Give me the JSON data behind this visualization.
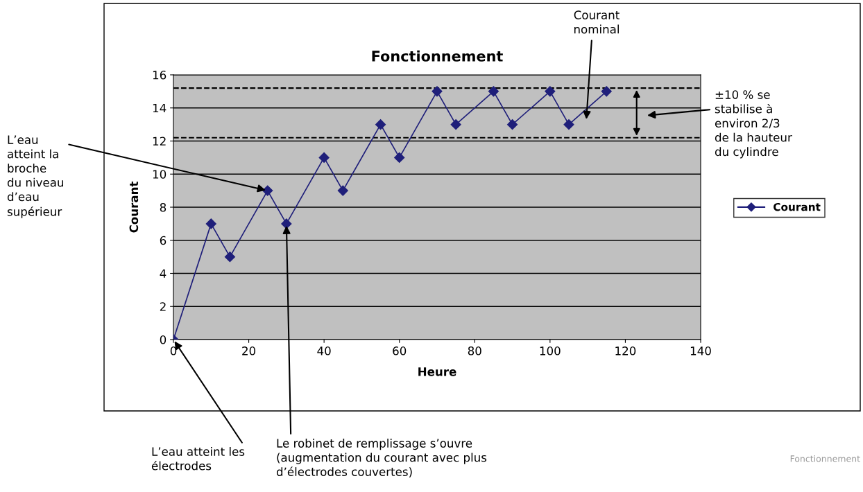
{
  "chart_data": {
    "type": "line",
    "title": "Fonctionnement",
    "xlabel": "Heure",
    "ylabel": "Courant",
    "x": [
      0,
      10,
      15,
      25,
      30,
      40,
      45,
      55,
      60,
      70,
      75,
      85,
      90,
      100,
      105,
      115
    ],
    "series": [
      {
        "name": "Courant",
        "color": "#1f1f7a",
        "values": [
          0,
          7,
          5,
          9,
          7,
          11,
          9,
          13,
          11,
          15,
          13,
          15,
          13,
          15,
          13,
          15
        ]
      }
    ],
    "xlim": [
      0,
      140
    ],
    "xticks": [
      0,
      20,
      40,
      60,
      80,
      100,
      120,
      140
    ],
    "ylim": [
      0,
      16
    ],
    "yticks": [
      0,
      2,
      4,
      6,
      8,
      10,
      12,
      14,
      16
    ],
    "grid": "y",
    "legend": "right",
    "marker": "diamond",
    "line_style": "solid",
    "ref_lines": [
      {
        "axis": "y",
        "value": 15.2,
        "color": "#000000",
        "line_style": "dashed"
      },
      {
        "axis": "y",
        "value": 12.2,
        "color": "#000000",
        "line_style": "dashed"
      }
    ],
    "annotations": [
      {
        "text": "L’eau\natteint la\nbroche\ndu niveau\nd’eau\nsupérieur",
        "x": 25,
        "y": 9
      },
      {
        "text": "L’eau atteint les\nélectrodes",
        "x": 0,
        "y": 0
      },
      {
        "text": "Le robinet de remplissage s’ouvre\n(augmentation du courant avec plus\nd’électrodes couvertes)",
        "x": 30,
        "y": 7
      },
      "Courant\nnominal",
      "±10 % se\nstabilise à\nenviron 2/3\nde la hauteur\ndu cylindre",
      "Fonctionnement"
    ]
  }
}
